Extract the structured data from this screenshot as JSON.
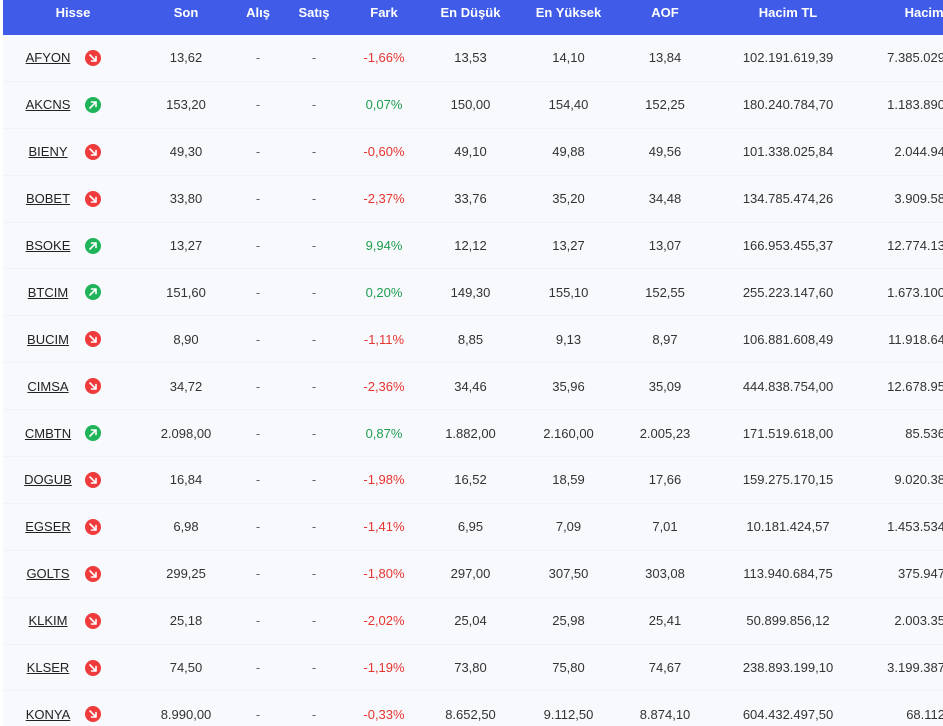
{
  "columns": {
    "hisse": "Hisse",
    "son": "Son",
    "alis": "Alış",
    "satis": "Satış",
    "fark": "Fark",
    "dusuk": "En Düşük",
    "yuksek": "En Yüksek",
    "aof": "AOF",
    "hacim": "Hacim TL",
    "lot": "Hacim Lot"
  },
  "colors": {
    "header_bg": "#3f5be8",
    "down": "#ef3b3b",
    "up": "#1fb35a",
    "neg_text": "#e5352f",
    "pos_text": "#1e9e4f"
  },
  "rows": [
    {
      "hisse": "AFYON",
      "trend": "down",
      "trend_icon": "arrow-down-right-icon",
      "son": "13,62",
      "alis": "-",
      "satis": "-",
      "fark": "-1,66%",
      "dusuk": "13,53",
      "yuksek": "14,10",
      "aof": "13,84",
      "hacim": "102.191.619,39",
      "lot": "7.385.029"
    },
    {
      "hisse": "AKCNS",
      "trend": "up",
      "trend_icon": "arrow-up-right-icon",
      "son": "153,20",
      "alis": "-",
      "satis": "-",
      "fark": "0,07%",
      "dusuk": "150,00",
      "yuksek": "154,40",
      "aof": "152,25",
      "hacim": "180.240.784,70",
      "lot": "1.183.890"
    },
    {
      "hisse": "BIENY",
      "trend": "down",
      "trend_icon": "arrow-down-right-icon",
      "son": "49,30",
      "alis": "-",
      "satis": "-",
      "fark": "-0,60%",
      "dusuk": "49,10",
      "yuksek": "49,88",
      "aof": "49,56",
      "hacim": "101.338.025,84",
      "lot": "2.044.94"
    },
    {
      "hisse": "BOBET",
      "trend": "down",
      "trend_icon": "arrow-down-right-icon",
      "son": "33,80",
      "alis": "-",
      "satis": "-",
      "fark": "-2,37%",
      "dusuk": "33,76",
      "yuksek": "35,20",
      "aof": "34,48",
      "hacim": "134.785.474,26",
      "lot": "3.909.58"
    },
    {
      "hisse": "BSOKE",
      "trend": "up",
      "trend_icon": "arrow-up-right-icon",
      "son": "13,27",
      "alis": "-",
      "satis": "-",
      "fark": "9,94%",
      "dusuk": "12,12",
      "yuksek": "13,27",
      "aof": "13,07",
      "hacim": "166.953.455,37",
      "lot": "12.774.13"
    },
    {
      "hisse": "BTCIM",
      "trend": "up",
      "trend_icon": "arrow-up-right-icon",
      "son": "151,60",
      "alis": "-",
      "satis": "-",
      "fark": "0,20%",
      "dusuk": "149,30",
      "yuksek": "155,10",
      "aof": "152,55",
      "hacim": "255.223.147,60",
      "lot": "1.673.100"
    },
    {
      "hisse": "BUCIM",
      "trend": "down",
      "trend_icon": "arrow-down-right-icon",
      "son": "8,90",
      "alis": "-",
      "satis": "-",
      "fark": "-1,11%",
      "dusuk": "8,85",
      "yuksek": "9,13",
      "aof": "8,97",
      "hacim": "106.881.608,49",
      "lot": "11.918.64"
    },
    {
      "hisse": "CIMSA",
      "trend": "down",
      "trend_icon": "arrow-down-right-icon",
      "son": "34,72",
      "alis": "-",
      "satis": "-",
      "fark": "-2,36%",
      "dusuk": "34,46",
      "yuksek": "35,96",
      "aof": "35,09",
      "hacim": "444.838.754,00",
      "lot": "12.678.95"
    },
    {
      "hisse": "CMBTN",
      "trend": "up",
      "trend_icon": "arrow-up-right-icon",
      "son": "2.098,00",
      "alis": "-",
      "satis": "-",
      "fark": "0,87%",
      "dusuk": "1.882,00",
      "yuksek": "2.160,00",
      "aof": "2.005,23",
      "hacim": "171.519.618,00",
      "lot": "85.536"
    },
    {
      "hisse": "DOGUB",
      "trend": "down",
      "trend_icon": "arrow-down-right-icon",
      "son": "16,84",
      "alis": "-",
      "satis": "-",
      "fark": "-1,98%",
      "dusuk": "16,52",
      "yuksek": "18,59",
      "aof": "17,66",
      "hacim": "159.275.170,15",
      "lot": "9.020.38"
    },
    {
      "hisse": "EGSER",
      "trend": "down",
      "trend_icon": "arrow-down-right-icon",
      "son": "6,98",
      "alis": "-",
      "satis": "-",
      "fark": "-1,41%",
      "dusuk": "6,95",
      "yuksek": "7,09",
      "aof": "7,01",
      "hacim": "10.181.424,57",
      "lot": "1.453.534"
    },
    {
      "hisse": "GOLTS",
      "trend": "down",
      "trend_icon": "arrow-down-right-icon",
      "son": "299,25",
      "alis": "-",
      "satis": "-",
      "fark": "-1,80%",
      "dusuk": "297,00",
      "yuksek": "307,50",
      "aof": "303,08",
      "hacim": "113.940.684,75",
      "lot": "375.947"
    },
    {
      "hisse": "KLKIM",
      "trend": "down",
      "trend_icon": "arrow-down-right-icon",
      "son": "25,18",
      "alis": "-",
      "satis": "-",
      "fark": "-2,02%",
      "dusuk": "25,04",
      "yuksek": "25,98",
      "aof": "25,41",
      "hacim": "50.899.856,12",
      "lot": "2.003.35"
    },
    {
      "hisse": "KLSER",
      "trend": "down",
      "trend_icon": "arrow-down-right-icon",
      "son": "74,50",
      "alis": "-",
      "satis": "-",
      "fark": "-1,19%",
      "dusuk": "73,80",
      "yuksek": "75,80",
      "aof": "74,67",
      "hacim": "238.893.199,10",
      "lot": "3.199.387"
    },
    {
      "hisse": "KONYA",
      "trend": "down",
      "trend_icon": "arrow-down-right-icon",
      "son": "8.990,00",
      "alis": "-",
      "satis": "-",
      "fark": "-0,33%",
      "dusuk": "8.652,50",
      "yuksek": "9.112,50",
      "aof": "8.874,10",
      "hacim": "604.432.497,50",
      "lot": "68.112"
    }
  ]
}
